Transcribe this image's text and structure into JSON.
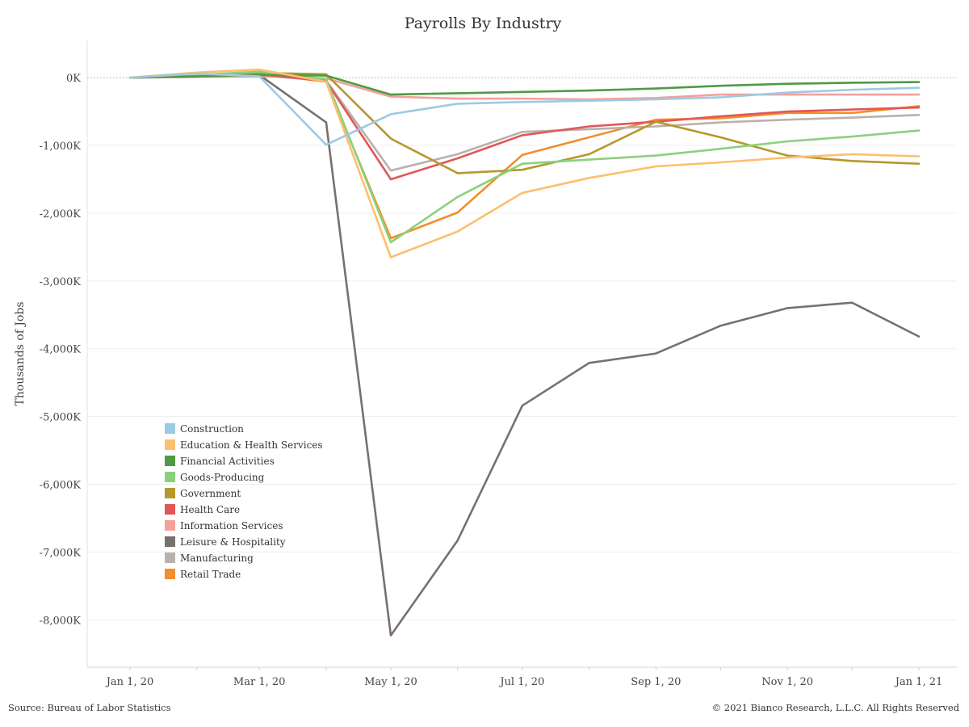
{
  "chart_data": {
    "type": "line",
    "title": "Payrolls By Industry",
    "ylabel": "Thousands of Jobs",
    "xlabel": "",
    "x": [
      "2020-01-01",
      "2020-02-01",
      "2020-03-01",
      "2020-04-01",
      "2020-05-01",
      "2020-06-01",
      "2020-07-01",
      "2020-08-01",
      "2020-09-01",
      "2020-10-01",
      "2020-11-01",
      "2020-12-01",
      "2021-01-01"
    ],
    "x_ticks": [
      {
        "date": "2020-01-01",
        "label": "Jan 1, 20"
      },
      {
        "date": "2020-03-01",
        "label": "Mar 1, 20"
      },
      {
        "date": "2020-05-01",
        "label": "May 1, 20"
      },
      {
        "date": "2020-07-01",
        "label": "Jul 1, 20"
      },
      {
        "date": "2020-09-01",
        "label": "Sep 1, 20"
      },
      {
        "date": "2020-11-01",
        "label": "Nov 1, 20"
      },
      {
        "date": "2021-01-01",
        "label": "Jan 1, 21"
      }
    ],
    "y_ticks": [
      {
        "value": 0,
        "label": "0K"
      },
      {
        "value": -1000,
        "label": "-1,000K"
      },
      {
        "value": -2000,
        "label": "-2,000K"
      },
      {
        "value": -3000,
        "label": "-3,000K"
      },
      {
        "value": -4000,
        "label": "-4,000K"
      },
      {
        "value": -5000,
        "label": "-5,000K"
      },
      {
        "value": -6000,
        "label": "-6,000K"
      },
      {
        "value": -7000,
        "label": "-7,000K"
      },
      {
        "value": -8000,
        "label": "-8,000K"
      }
    ],
    "ylim": [
      -8700,
      550
    ],
    "grid": true,
    "legend_position": "bottom-left",
    "series": [
      {
        "name": "Construction",
        "color": "#9ecae1",
        "values": [
          0,
          60,
          20,
          -990,
          -540,
          -385,
          -360,
          -340,
          -320,
          -290,
          -220,
          -180,
          -150
        ]
      },
      {
        "name": "Education & Health Services",
        "color": "#fdbf6f",
        "values": [
          0,
          75,
          120,
          -60,
          -2650,
          -2270,
          -1700,
          -1480,
          -1310,
          -1250,
          -1180,
          -1130,
          -1160
        ]
      },
      {
        "name": "Financial Activities",
        "color": "#4f9a45",
        "values": [
          0,
          20,
          40,
          30,
          -250,
          -230,
          -210,
          -190,
          -160,
          -120,
          -90,
          -75,
          -65
        ]
      },
      {
        "name": "Goods-Producing",
        "color": "#8bd17c",
        "values": [
          0,
          40,
          90,
          -20,
          -2430,
          -1760,
          -1270,
          -1210,
          -1150,
          -1050,
          -940,
          -870,
          -780
        ]
      },
      {
        "name": "Government",
        "color": "#b5982d",
        "values": [
          0,
          25,
          70,
          50,
          -900,
          -1410,
          -1360,
          -1130,
          -650,
          -880,
          -1150,
          -1230,
          -1270
        ]
      },
      {
        "name": "Health Care",
        "color": "#e15759",
        "values": [
          0,
          20,
          50,
          -50,
          -1500,
          -1190,
          -850,
          -720,
          -650,
          -570,
          -500,
          -470,
          -440
        ]
      },
      {
        "name": "Information Services",
        "color": "#f4a09c",
        "values": [
          0,
          10,
          20,
          -10,
          -280,
          -310,
          -310,
          -320,
          -300,
          -250,
          -250,
          -250,
          -250
        ]
      },
      {
        "name": "Leisure & Hospitality",
        "color": "#79706e",
        "values": [
          0,
          20,
          40,
          -660,
          -8230,
          -6830,
          -4840,
          -4210,
          -4070,
          -3660,
          -3400,
          -3320,
          -3820
        ]
      },
      {
        "name": "Manufacturing",
        "color": "#bab0ac",
        "values": [
          0,
          10,
          30,
          -40,
          -1370,
          -1130,
          -800,
          -760,
          -720,
          -660,
          -620,
          -590,
          -550
        ]
      },
      {
        "name": "Retail Trade",
        "color": "#f28e2b",
        "values": [
          0,
          30,
          60,
          -60,
          -2370,
          -1990,
          -1140,
          -880,
          -620,
          -600,
          -520,
          -520,
          -420
        ]
      }
    ]
  },
  "footer": {
    "source": "Source: Bureau of Labor Statistics",
    "copyright": "© 2021 Bianco Research, L.L.C. All Rights Reserved"
  }
}
